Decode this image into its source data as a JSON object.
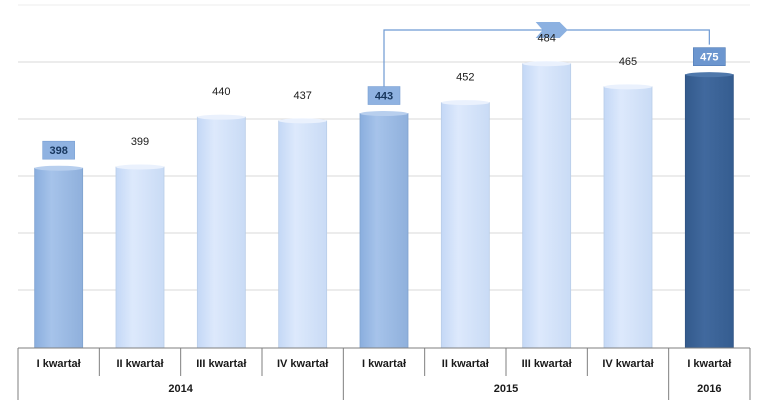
{
  "chart_data": {
    "type": "bar",
    "categories": [
      "I kwartał",
      "II kwartał",
      "III kwartał",
      "IV kwartał",
      "I kwartał",
      "II kwartał",
      "III kwartał",
      "IV kwartał",
      "I kwartał"
    ],
    "groups": [
      {
        "label": "2014",
        "count": 4
      },
      {
        "label": "2015",
        "count": 4
      },
      {
        "label": "2016",
        "count": 1
      }
    ],
    "values": [
      398,
      399,
      440,
      437,
      443,
      452,
      484,
      465,
      475
    ],
    "highlighted": [
      0,
      4,
      8
    ],
    "comparison_arrow": {
      "from": 4,
      "to": 8
    },
    "ylim": [
      250,
      520
    ],
    "grid": true,
    "colors": {
      "bar_light": "#d3e3fb",
      "bar_medium": "#9bbbe3",
      "bar_dark": "#3b6395",
      "label_box_medium": "#8fb2e1",
      "label_box_dark": "#6c96cf",
      "arrow": "#6e9ad3",
      "grid": "#d9d9d9"
    }
  }
}
